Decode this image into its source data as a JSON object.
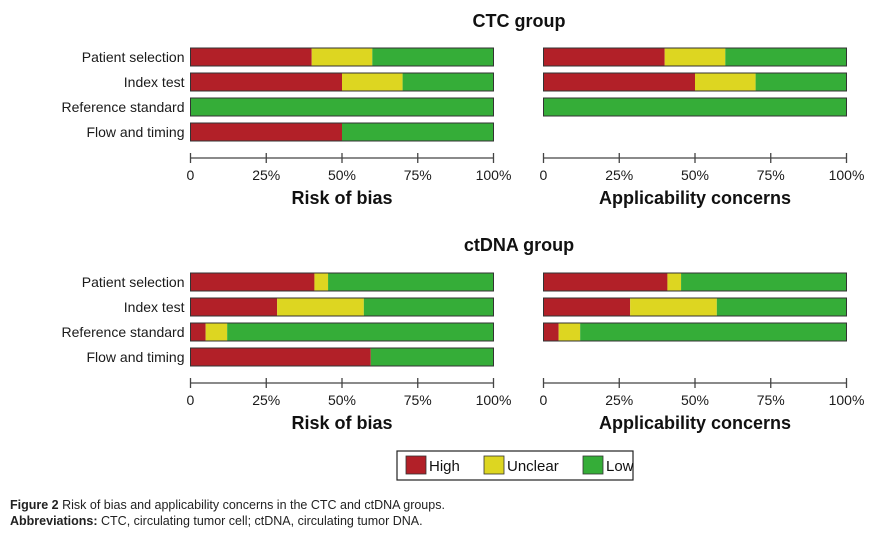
{
  "figure": {
    "caption_label": "Figure 2",
    "caption_text": "Risk of bias and applicability concerns in the CTC and ctDNA groups.",
    "abbrev_label": "Abbreviations:",
    "abbrev_text": "CTC, circulating tumor cell; ctDNA, circulating tumor DNA."
  },
  "colors": {
    "High": "#B22028",
    "Unclear": "#DDD621",
    "Low": "#35AD38"
  },
  "chart_data": [
    {
      "type": "bar",
      "stacked": true,
      "orientation": "horizontal",
      "group_title": "CTC group",
      "title": "Risk of bias",
      "categories": [
        "Patient selection",
        "Index test",
        "Reference standard",
        "Flow and timing"
      ],
      "series": [
        {
          "name": "High",
          "values": [
            40,
            50,
            0,
            50
          ]
        },
        {
          "name": "Unclear",
          "values": [
            20,
            20,
            0,
            0
          ]
        },
        {
          "name": "Low",
          "values": [
            40,
            30,
            100,
            50
          ]
        }
      ],
      "xticks": [
        "0",
        "25%",
        "50%",
        "75%",
        "100%"
      ],
      "xlim": [
        0,
        100
      ],
      "grid": false
    },
    {
      "type": "bar",
      "stacked": true,
      "orientation": "horizontal",
      "group_title": "CTC group",
      "title": "Applicability concerns",
      "categories": [
        "Patient selection",
        "Index test",
        "Reference standard"
      ],
      "series": [
        {
          "name": "High",
          "values": [
            40,
            50,
            0
          ]
        },
        {
          "name": "Unclear",
          "values": [
            20,
            20,
            0
          ]
        },
        {
          "name": "Low",
          "values": [
            40,
            30,
            100
          ]
        }
      ],
      "xticks": [
        "0",
        "25%",
        "50%",
        "75%",
        "100%"
      ],
      "xlim": [
        0,
        100
      ],
      "grid": false
    },
    {
      "type": "bar",
      "stacked": true,
      "orientation": "horizontal",
      "group_title": "ctDNA group",
      "title": "Risk of bias",
      "categories": [
        "Patient selection",
        "Index test",
        "Reference standard",
        "Flow and timing"
      ],
      "series": [
        {
          "name": "High",
          "values": [
            40.9,
            28.6,
            5.0,
            59.5
          ]
        },
        {
          "name": "Unclear",
          "values": [
            4.5,
            28.6,
            7.1,
            0
          ]
        },
        {
          "name": "Low",
          "values": [
            54.6,
            42.8,
            87.9,
            40.5
          ]
        }
      ],
      "xticks": [
        "0",
        "25%",
        "50%",
        "75%",
        "100%"
      ],
      "xlim": [
        0,
        100
      ],
      "grid": false
    },
    {
      "type": "bar",
      "stacked": true,
      "orientation": "horizontal",
      "group_title": "ctDNA group",
      "title": "Applicability concerns",
      "categories": [
        "Patient selection",
        "Index test",
        "Reference standard"
      ],
      "series": [
        {
          "name": "High",
          "values": [
            40.9,
            28.6,
            5.0
          ]
        },
        {
          "name": "Unclear",
          "values": [
            4.5,
            28.6,
            7.1
          ]
        },
        {
          "name": "Low",
          "values": [
            54.6,
            42.8,
            87.9
          ]
        }
      ],
      "xticks": [
        "0",
        "25%",
        "50%",
        "75%",
        "100%"
      ],
      "xlim": [
        0,
        100
      ],
      "grid": false
    }
  ],
  "legend": {
    "placement": "bottom-center",
    "items": [
      "High",
      "Unclear",
      "Low"
    ]
  }
}
